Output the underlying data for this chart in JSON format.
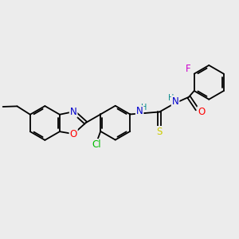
{
  "background_color": "#ececec",
  "bond_color": "#000000",
  "atom_colors": {
    "N": "#0000cc",
    "O": "#ff0000",
    "S": "#cccc00",
    "Cl": "#00bb00",
    "F": "#cc00cc",
    "H": "#008888",
    "C": "#000000"
  },
  "font_size": 8.5,
  "fig_size": [
    3.0,
    3.0
  ],
  "dpi": 100
}
